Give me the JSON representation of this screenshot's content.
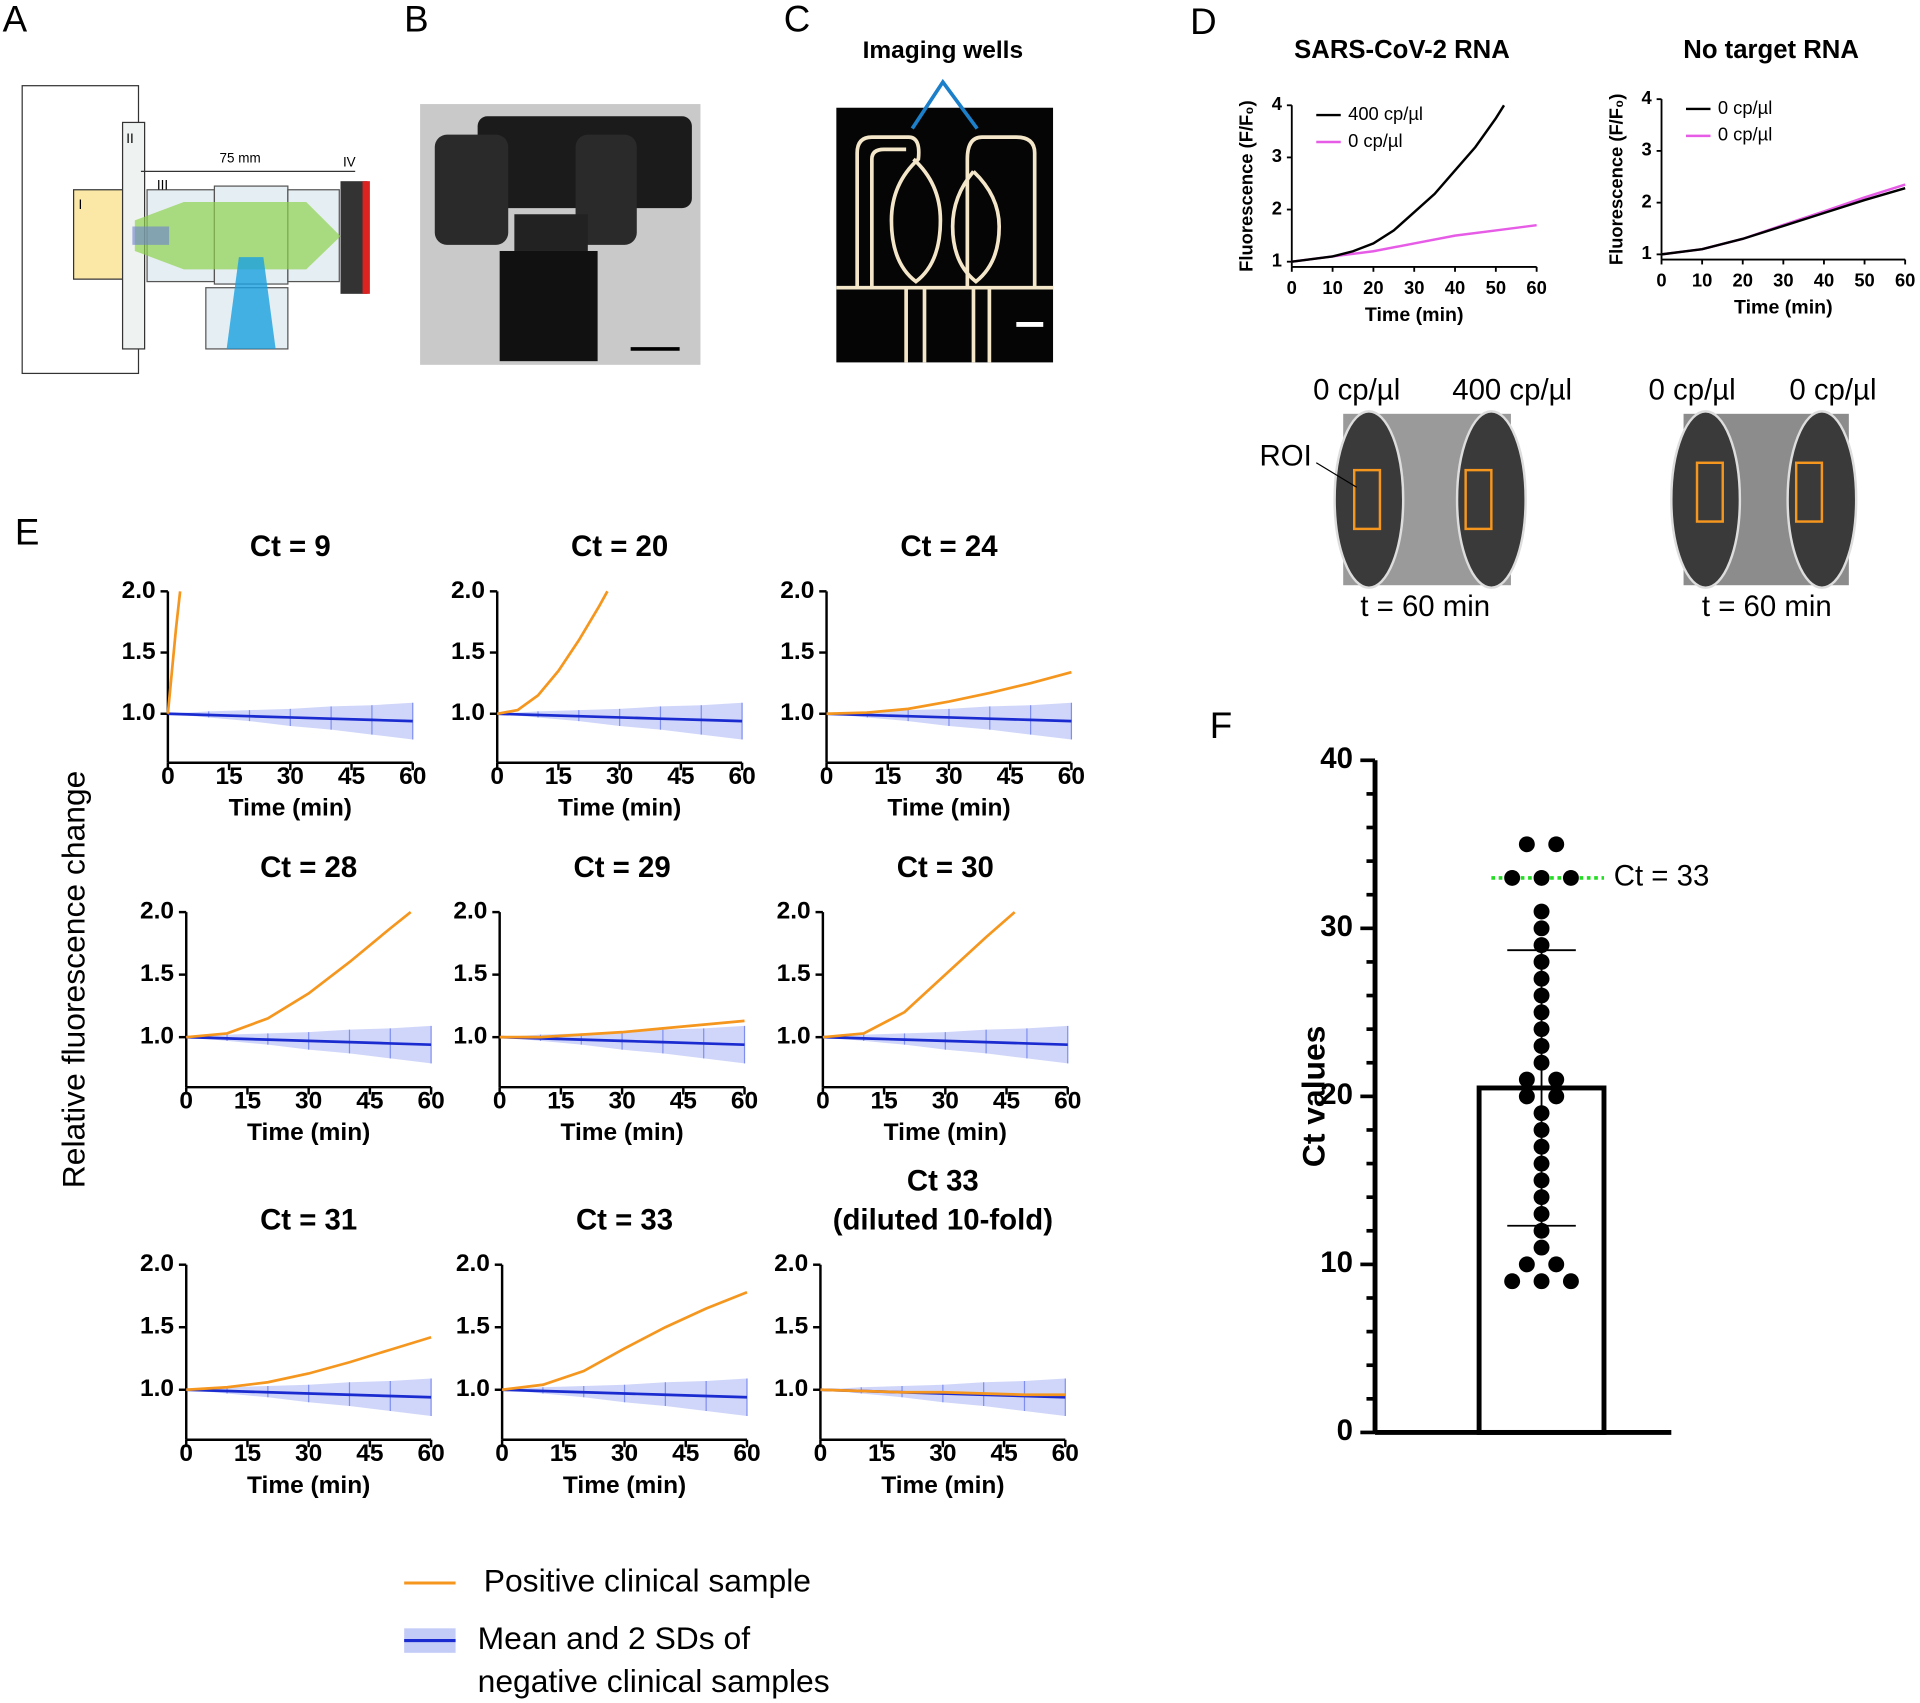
{
  "panel_labels": [
    "A",
    "B",
    "C",
    "D",
    "E",
    "F"
  ],
  "panel_a": {
    "parts": [
      "I",
      "II",
      "III",
      "IV"
    ],
    "distance": "75 mm"
  },
  "panel_c": {
    "label": "Imaging wells"
  },
  "panel_d_images": {
    "groups": [
      {
        "wells": [
          "0 cp/µl",
          "400 cp/µl"
        ],
        "time": "t = 60 min"
      },
      {
        "wells": [
          "0 cp/µl",
          "0 cp/µl"
        ],
        "time": "t = 60 min"
      }
    ],
    "roi": "ROI"
  },
  "panel_e": {
    "ylabel": "Relative fluorescence change",
    "legend": [
      {
        "name": [
          "Positive clinical sample"
        ],
        "color": "#f5961e"
      },
      {
        "name": [
          "Mean and 2 SDs of",
          "negative clinical samples"
        ],
        "color": "#1a2bd0"
      }
    ]
  },
  "chart_data": [
    {
      "type": "line",
      "title": "SARS-CoV-2 RNA",
      "xlabel": "Time (min)",
      "ylabel": "Fluorescence (F/F₀)",
      "xlim": [
        0,
        60
      ],
      "xticks": [
        0,
        10,
        20,
        30,
        40,
        50,
        60
      ],
      "ylim": [
        0.9,
        4
      ],
      "yticks": [
        1,
        2,
        3,
        4
      ],
      "legend": "top-left",
      "series": [
        {
          "name": "400 cp/µl",
          "color": "#000000",
          "x": [
            0,
            10,
            15,
            20,
            25,
            30,
            35,
            40,
            45,
            50,
            52
          ],
          "values": [
            1.0,
            1.1,
            1.2,
            1.35,
            1.6,
            1.95,
            2.3,
            2.75,
            3.2,
            3.75,
            4.0
          ]
        },
        {
          "name": "0 cp/µl",
          "color": "#e65ce6",
          "x": [
            0,
            10,
            20,
            30,
            40,
            50,
            60
          ],
          "values": [
            1.0,
            1.1,
            1.2,
            1.35,
            1.5,
            1.6,
            1.7
          ]
        }
      ]
    },
    {
      "type": "line",
      "title": "No target RNA",
      "xlabel": "Time (min)",
      "ylabel": "Fluorescence (F/F₀)",
      "xlim": [
        0,
        60
      ],
      "xticks": [
        0,
        10,
        20,
        30,
        40,
        50,
        60
      ],
      "ylim": [
        0.9,
        4
      ],
      "yticks": [
        1,
        2,
        3,
        4
      ],
      "legend": "top-left",
      "series": [
        {
          "name": "0 cp/µl",
          "color": "#000000",
          "x": [
            0,
            10,
            20,
            30,
            40,
            50,
            60
          ],
          "values": [
            1.0,
            1.1,
            1.3,
            1.55,
            1.8,
            2.05,
            2.28
          ]
        },
        {
          "name": "0 cp/µl",
          "color": "#e65ce6",
          "x": [
            0,
            10,
            20,
            30,
            40,
            50,
            60
          ],
          "values": [
            1.0,
            1.1,
            1.3,
            1.57,
            1.83,
            2.1,
            2.35
          ]
        }
      ]
    },
    {
      "type": "line",
      "title": "Ct = 9",
      "xlabel": "Time (min)",
      "xlim": [
        0,
        60
      ],
      "xticks": [
        0,
        15,
        30,
        45,
        60
      ],
      "ylim": [
        0.6,
        2.0
      ],
      "yticks": [
        {
          "value": 1,
          "label": "1.0"
        },
        1.5,
        {
          "value": 2,
          "label": "2.0"
        }
      ],
      "series": [
        {
          "color": "#f5961e",
          "x": [
            0,
            1,
            2,
            3
          ],
          "values": [
            1.0,
            1.35,
            1.7,
            2.0
          ]
        },
        {
          "color": "#1a2bd0",
          "x": [
            0,
            10,
            20,
            30,
            40,
            50,
            60
          ],
          "values": [
            1.0,
            0.99,
            0.98,
            0.97,
            0.96,
            0.95,
            0.94
          ],
          "lower": [
            1.0,
            0.97,
            0.94,
            0.9,
            0.87,
            0.83,
            0.79
          ],
          "upper": [
            1.0,
            1.02,
            1.03,
            1.04,
            1.06,
            1.07,
            1.09
          ]
        }
      ]
    },
    {
      "type": "line",
      "title": "Ct = 20",
      "xlabel": "Time (min)",
      "xlim": [
        0,
        60
      ],
      "xticks": [
        0,
        15,
        30,
        45,
        60
      ],
      "ylim": [
        0.6,
        2.0
      ],
      "yticks": [
        {
          "value": 1,
          "label": "1.0"
        },
        1.5,
        {
          "value": 2,
          "label": "2.0"
        }
      ],
      "series": [
        {
          "color": "#f5961e",
          "x": [
            0,
            5,
            10,
            15,
            20,
            25,
            27
          ],
          "values": [
            1.0,
            1.03,
            1.15,
            1.35,
            1.6,
            1.88,
            2.0
          ]
        },
        {
          "color": "#1a2bd0",
          "x": [
            0,
            10,
            20,
            30,
            40,
            50,
            60
          ],
          "values": [
            1.0,
            0.99,
            0.98,
            0.97,
            0.96,
            0.95,
            0.94
          ],
          "lower": [
            1.0,
            0.97,
            0.94,
            0.9,
            0.87,
            0.83,
            0.79
          ],
          "upper": [
            1.0,
            1.02,
            1.03,
            1.04,
            1.06,
            1.07,
            1.09
          ]
        }
      ]
    },
    {
      "type": "line",
      "title": "Ct = 24",
      "xlabel": "Time (min)",
      "xlim": [
        0,
        60
      ],
      "xticks": [
        0,
        15,
        30,
        45,
        60
      ],
      "ylim": [
        0.6,
        2.0
      ],
      "yticks": [
        {
          "value": 1,
          "label": "1.0"
        },
        1.5,
        {
          "value": 2,
          "label": "2.0"
        }
      ],
      "series": [
        {
          "color": "#f5961e",
          "x": [
            0,
            10,
            20,
            30,
            40,
            50,
            60
          ],
          "values": [
            1.0,
            1.01,
            1.04,
            1.1,
            1.17,
            1.25,
            1.34
          ]
        },
        {
          "color": "#1a2bd0",
          "x": [
            0,
            10,
            20,
            30,
            40,
            50,
            60
          ],
          "values": [
            1.0,
            0.99,
            0.98,
            0.97,
            0.96,
            0.95,
            0.94
          ],
          "lower": [
            1.0,
            0.97,
            0.94,
            0.9,
            0.87,
            0.83,
            0.79
          ],
          "upper": [
            1.0,
            1.02,
            1.03,
            1.04,
            1.06,
            1.07,
            1.09
          ]
        }
      ]
    },
    {
      "type": "line",
      "title": "Ct = 28",
      "xlabel": "Time (min)",
      "xlim": [
        0,
        60
      ],
      "xticks": [
        0,
        15,
        30,
        45,
        60
      ],
      "ylim": [
        0.6,
        2.0
      ],
      "yticks": [
        {
          "value": 1,
          "label": "1.0"
        },
        1.5,
        {
          "value": 2,
          "label": "2.0"
        }
      ],
      "series": [
        {
          "color": "#f5961e",
          "x": [
            0,
            10,
            20,
            30,
            40,
            50,
            55
          ],
          "values": [
            1.0,
            1.03,
            1.15,
            1.35,
            1.6,
            1.87,
            2.0
          ]
        },
        {
          "color": "#1a2bd0",
          "x": [
            0,
            10,
            20,
            30,
            40,
            50,
            60
          ],
          "values": [
            1.0,
            0.99,
            0.98,
            0.97,
            0.96,
            0.95,
            0.94
          ],
          "lower": [
            1.0,
            0.97,
            0.94,
            0.9,
            0.87,
            0.83,
            0.79
          ],
          "upper": [
            1.0,
            1.02,
            1.03,
            1.04,
            1.06,
            1.07,
            1.09
          ]
        }
      ]
    },
    {
      "type": "line",
      "title": "Ct = 29",
      "xlabel": "Time (min)",
      "xlim": [
        0,
        60
      ],
      "xticks": [
        0,
        15,
        30,
        45,
        60
      ],
      "ylim": [
        0.6,
        2.0
      ],
      "yticks": [
        {
          "value": 1,
          "label": "1.0"
        },
        1.5,
        {
          "value": 2,
          "label": "2.0"
        }
      ],
      "series": [
        {
          "color": "#f5961e",
          "x": [
            0,
            10,
            20,
            30,
            40,
            50,
            60
          ],
          "values": [
            1.0,
            1.0,
            1.02,
            1.04,
            1.07,
            1.1,
            1.13
          ]
        },
        {
          "color": "#1a2bd0",
          "x": [
            0,
            10,
            20,
            30,
            40,
            50,
            60
          ],
          "values": [
            1.0,
            0.99,
            0.98,
            0.97,
            0.96,
            0.95,
            0.94
          ],
          "lower": [
            1.0,
            0.97,
            0.94,
            0.9,
            0.87,
            0.83,
            0.79
          ],
          "upper": [
            1.0,
            1.02,
            1.03,
            1.04,
            1.06,
            1.07,
            1.09
          ]
        }
      ]
    },
    {
      "type": "line",
      "title": "Ct = 30",
      "xlabel": "Time (min)",
      "xlim": [
        0,
        60
      ],
      "xticks": [
        0,
        15,
        30,
        45,
        60
      ],
      "ylim": [
        0.6,
        2.0
      ],
      "yticks": [
        {
          "value": 1,
          "label": "1.0"
        },
        1.5,
        {
          "value": 2,
          "label": "2.0"
        }
      ],
      "series": [
        {
          "color": "#f5961e",
          "x": [
            0,
            10,
            20,
            30,
            40,
            47
          ],
          "values": [
            1.0,
            1.03,
            1.2,
            1.5,
            1.8,
            2.0
          ]
        },
        {
          "color": "#1a2bd0",
          "x": [
            0,
            10,
            20,
            30,
            40,
            50,
            60
          ],
          "values": [
            1.0,
            0.99,
            0.98,
            0.97,
            0.96,
            0.95,
            0.94
          ],
          "lower": [
            1.0,
            0.97,
            0.94,
            0.9,
            0.87,
            0.83,
            0.79
          ],
          "upper": [
            1.0,
            1.02,
            1.03,
            1.04,
            1.06,
            1.07,
            1.09
          ]
        }
      ]
    },
    {
      "type": "line",
      "title": "Ct = 31",
      "xlabel": "Time (min)",
      "xlim": [
        0,
        60
      ],
      "xticks": [
        0,
        15,
        30,
        45,
        60
      ],
      "ylim": [
        0.6,
        2.0
      ],
      "yticks": [
        {
          "value": 1,
          "label": "1.0"
        },
        1.5,
        {
          "value": 2,
          "label": "2.0"
        }
      ],
      "series": [
        {
          "color": "#f5961e",
          "x": [
            0,
            10,
            20,
            30,
            40,
            50,
            60
          ],
          "values": [
            1.0,
            1.02,
            1.06,
            1.13,
            1.22,
            1.32,
            1.42
          ]
        },
        {
          "color": "#1a2bd0",
          "x": [
            0,
            10,
            20,
            30,
            40,
            50,
            60
          ],
          "values": [
            1.0,
            0.99,
            0.98,
            0.97,
            0.96,
            0.95,
            0.94
          ],
          "lower": [
            1.0,
            0.97,
            0.94,
            0.9,
            0.87,
            0.83,
            0.79
          ],
          "upper": [
            1.0,
            1.02,
            1.03,
            1.04,
            1.06,
            1.07,
            1.09
          ]
        }
      ]
    },
    {
      "type": "line",
      "title": "Ct = 33",
      "xlabel": "Time (min)",
      "xlim": [
        0,
        60
      ],
      "xticks": [
        0,
        15,
        30,
        45,
        60
      ],
      "ylim": [
        0.6,
        2.0
      ],
      "yticks": [
        {
          "value": 1,
          "label": "1.0"
        },
        1.5,
        {
          "value": 2,
          "label": "2.0"
        }
      ],
      "series": [
        {
          "color": "#f5961e",
          "x": [
            0,
            10,
            20,
            30,
            40,
            50,
            60
          ],
          "values": [
            1.0,
            1.04,
            1.15,
            1.33,
            1.5,
            1.65,
            1.78
          ]
        },
        {
          "color": "#1a2bd0",
          "x": [
            0,
            10,
            20,
            30,
            40,
            50,
            60
          ],
          "values": [
            1.0,
            0.99,
            0.98,
            0.97,
            0.96,
            0.95,
            0.94
          ],
          "lower": [
            1.0,
            0.97,
            0.94,
            0.9,
            0.87,
            0.83,
            0.79
          ],
          "upper": [
            1.0,
            1.02,
            1.03,
            1.04,
            1.06,
            1.07,
            1.09
          ]
        }
      ]
    },
    {
      "type": "line",
      "title": [
        "Ct 33",
        "(diluted 10-fold)"
      ],
      "xlabel": "Time (min)",
      "xlim": [
        0,
        60
      ],
      "xticks": [
        0,
        15,
        30,
        45,
        60
      ],
      "ylim": [
        0.6,
        2.0
      ],
      "yticks": [
        {
          "value": 1,
          "label": "1.0"
        },
        1.5,
        {
          "value": 2,
          "label": "2.0"
        }
      ],
      "series": [
        {
          "color": "#f5961e",
          "x": [
            0,
            10,
            20,
            30,
            40,
            50,
            60
          ],
          "values": [
            1.0,
            0.99,
            0.98,
            0.98,
            0.97,
            0.96,
            0.96
          ]
        },
        {
          "color": "#1a2bd0",
          "x": [
            0,
            10,
            20,
            30,
            40,
            50,
            60
          ],
          "values": [
            1.0,
            0.99,
            0.98,
            0.97,
            0.96,
            0.95,
            0.94
          ],
          "lower": [
            1.0,
            0.97,
            0.94,
            0.9,
            0.87,
            0.83,
            0.79
          ],
          "upper": [
            1.0,
            1.02,
            1.03,
            1.04,
            1.06,
            1.07,
            1.09
          ]
        }
      ]
    },
    {
      "type": "bar",
      "ylabel": "Ct values",
      "ylim": [
        0,
        40
      ],
      "yticks": [
        0,
        10,
        20,
        30,
        40
      ],
      "yminor": [
        2,
        4,
        6,
        8,
        12,
        14,
        16,
        18,
        22,
        24,
        26,
        28,
        32,
        34,
        36,
        38
      ],
      "values": [
        20.5
      ],
      "errors": [
        8.2
      ],
      "color": "#ffffff",
      "points": [
        35,
        35,
        33,
        33,
        33,
        31,
        30,
        29,
        28,
        27,
        26,
        25,
        24,
        23,
        22,
        21,
        21,
        20,
        20,
        19,
        18,
        17,
        16,
        15,
        14,
        13,
        12,
        11,
        10,
        10,
        9,
        9,
        9
      ],
      "reference": {
        "value": 33,
        "label": "Ct = 33",
        "color": "#22dd22"
      }
    }
  ]
}
